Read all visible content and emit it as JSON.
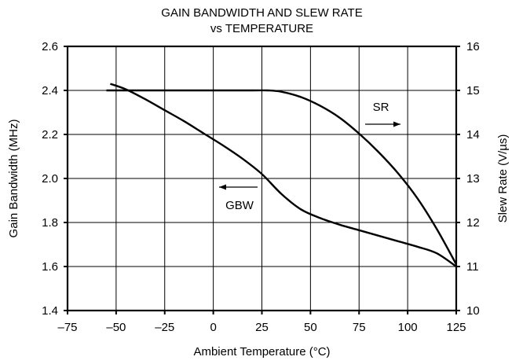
{
  "chart_data": {
    "type": "line",
    "title": [
      "GAIN BANDWIDTH AND SLEW RATE",
      "vs TEMPERATURE"
    ],
    "xlabel": "Ambient Temperature (°C)",
    "ylabel_left": "Gain Bandwidth (MHz)",
    "ylabel_right": "Slew Rate (V/µs)",
    "xlim": [
      -75,
      125
    ],
    "ylim_left": [
      1.4,
      2.6
    ],
    "ylim_right": [
      10,
      16
    ],
    "x_ticks": [
      -75,
      -50,
      -25,
      0,
      25,
      50,
      75,
      100,
      125
    ],
    "x_tick_labels": [
      "–75",
      "–50",
      "–25",
      "0",
      "25",
      "50",
      "75",
      "100",
      "125"
    ],
    "y_left_ticks": [
      1.4,
      1.6,
      1.8,
      2.0,
      2.2,
      2.4,
      2.6
    ],
    "y_left_tick_labels": [
      "1.4",
      "1.6",
      "1.8",
      "2.0",
      "2.2",
      "2.4",
      "2.6"
    ],
    "y_right_ticks": [
      10,
      11,
      12,
      13,
      14,
      15,
      16
    ],
    "y_right_tick_labels": [
      "10",
      "11",
      "12",
      "13",
      "14",
      "15",
      "16"
    ],
    "grid": true,
    "series": [
      {
        "name": "GBW",
        "axis": "left",
        "x": [
          -53,
          -45,
          -35,
          -25,
          -15,
          -5,
          5,
          15,
          25,
          35,
          45,
          55,
          65,
          75,
          85,
          95,
          105,
          115,
          125
        ],
        "y": [
          2.43,
          2.405,
          2.36,
          2.31,
          2.26,
          2.205,
          2.15,
          2.09,
          2.02,
          1.93,
          1.86,
          1.82,
          1.79,
          1.765,
          1.74,
          1.715,
          1.69,
          1.66,
          1.6
        ]
      },
      {
        "name": "SR",
        "axis": "right",
        "x": [
          -55,
          -40,
          -20,
          0,
          20,
          28,
          35,
          45,
          55,
          65,
          75,
          85,
          95,
          105,
          115,
          125
        ],
        "y": [
          15,
          15,
          15,
          15,
          15,
          15,
          14.97,
          14.85,
          14.65,
          14.38,
          14.02,
          13.6,
          13.12,
          12.55,
          11.85,
          11.05
        ]
      }
    ],
    "annotations": [
      {
        "text": "SR",
        "arrow": "right",
        "points_to": "right-axis"
      },
      {
        "text": "GBW",
        "arrow": "left",
        "points_to": "left-axis"
      }
    ]
  }
}
